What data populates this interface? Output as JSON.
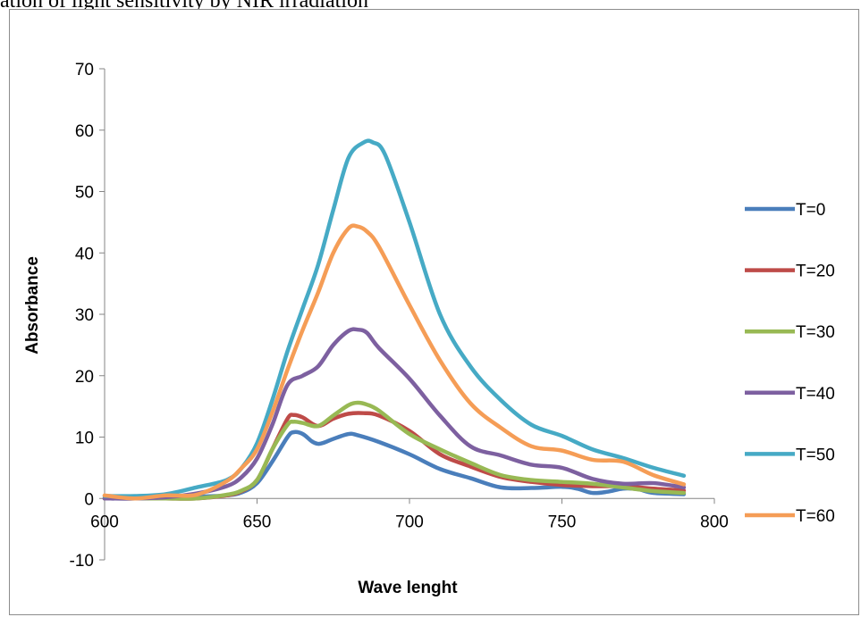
{
  "caption": "ation of light sensitivity by NIR irradiation",
  "chart_data": {
    "type": "line",
    "xlabel": "Wave lenght",
    "ylabel": "Absorbance",
    "xlim": [
      600,
      800
    ],
    "ylim": [
      -10,
      70
    ],
    "x_ticks": [
      600,
      650,
      700,
      750,
      800
    ],
    "y_ticks": [
      -10,
      0,
      10,
      20,
      30,
      40,
      50,
      60,
      70
    ],
    "grid": false,
    "legend_position": "right",
    "series": [
      {
        "name": "T=0",
        "color": "#4a7ebb",
        "points": [
          [
            600,
            0
          ],
          [
            610,
            0
          ],
          [
            620,
            0.2
          ],
          [
            630,
            0.3
          ],
          [
            640,
            0.5
          ],
          [
            645,
            1
          ],
          [
            650,
            2.5
          ],
          [
            655,
            6
          ],
          [
            660,
            10
          ],
          [
            662,
            10.8
          ],
          [
            665,
            10.5
          ],
          [
            668,
            9.3
          ],
          [
            670,
            8.9
          ],
          [
            672,
            9.1
          ],
          [
            675,
            9.7
          ],
          [
            680,
            10.5
          ],
          [
            683,
            10.3
          ],
          [
            690,
            9.2
          ],
          [
            700,
            7.2
          ],
          [
            710,
            4.8
          ],
          [
            720,
            3.3
          ],
          [
            730,
            1.8
          ],
          [
            740,
            1.7
          ],
          [
            750,
            1.9
          ],
          [
            755,
            1.6
          ],
          [
            760,
            0.9
          ],
          [
            765,
            1.1
          ],
          [
            770,
            1.6
          ],
          [
            775,
            1.5
          ],
          [
            780,
            0.9
          ],
          [
            790,
            0.7
          ]
        ]
      },
      {
        "name": "T=20",
        "color": "#be4b48",
        "points": [
          [
            600,
            0
          ],
          [
            610,
            0
          ],
          [
            620,
            0
          ],
          [
            630,
            0
          ],
          [
            640,
            0.5
          ],
          [
            645,
            1.2
          ],
          [
            650,
            3
          ],
          [
            655,
            8
          ],
          [
            660,
            13
          ],
          [
            662,
            13.6
          ],
          [
            665,
            13.2
          ],
          [
            670,
            11.8
          ],
          [
            675,
            13
          ],
          [
            680,
            13.8
          ],
          [
            685,
            13.9
          ],
          [
            690,
            13.5
          ],
          [
            700,
            11
          ],
          [
            710,
            7.2
          ],
          [
            720,
            5.2
          ],
          [
            730,
            3.5
          ],
          [
            740,
            2.7
          ],
          [
            750,
            2.2
          ],
          [
            760,
            2
          ],
          [
            770,
            2
          ],
          [
            780,
            1.6
          ],
          [
            790,
            1.3
          ]
        ]
      },
      {
        "name": "T=30",
        "color": "#98b954",
        "points": [
          [
            600,
            0
          ],
          [
            610,
            0
          ],
          [
            620,
            0
          ],
          [
            630,
            0
          ],
          [
            640,
            0.6
          ],
          [
            645,
            1.3
          ],
          [
            650,
            3
          ],
          [
            655,
            8
          ],
          [
            660,
            12
          ],
          [
            662,
            12.5
          ],
          [
            665,
            12.3
          ],
          [
            670,
            11.8
          ],
          [
            675,
            13.5
          ],
          [
            680,
            15.2
          ],
          [
            683,
            15.6
          ],
          [
            686,
            15.3
          ],
          [
            690,
            14.3
          ],
          [
            700,
            10.5
          ],
          [
            710,
            8
          ],
          [
            720,
            5.8
          ],
          [
            730,
            3.8
          ],
          [
            740,
            3
          ],
          [
            750,
            2.7
          ],
          [
            760,
            2.4
          ],
          [
            770,
            1.8
          ],
          [
            780,
            1.2
          ],
          [
            790,
            0.9
          ]
        ]
      },
      {
        "name": "T=40",
        "color": "#7d60a0",
        "points": [
          [
            600,
            0
          ],
          [
            610,
            0
          ],
          [
            620,
            0.2
          ],
          [
            630,
            0.8
          ],
          [
            640,
            2
          ],
          [
            645,
            3.5
          ],
          [
            650,
            6.5
          ],
          [
            655,
            12
          ],
          [
            660,
            18.5
          ],
          [
            665,
            20
          ],
          [
            670,
            21.5
          ],
          [
            675,
            25
          ],
          [
            680,
            27.3
          ],
          [
            683,
            27.5
          ],
          [
            686,
            27
          ],
          [
            690,
            24.5
          ],
          [
            700,
            19.5
          ],
          [
            710,
            13.5
          ],
          [
            720,
            8.5
          ],
          [
            730,
            7
          ],
          [
            740,
            5.5
          ],
          [
            750,
            5
          ],
          [
            760,
            3.2
          ],
          [
            770,
            2.4
          ],
          [
            780,
            2.5
          ],
          [
            790,
            1.8
          ]
        ]
      },
      {
        "name": "T=50",
        "color": "#46aac5",
        "points": [
          [
            600,
            0.4
          ],
          [
            610,
            0.4
          ],
          [
            620,
            0.7
          ],
          [
            630,
            1.8
          ],
          [
            640,
            3
          ],
          [
            645,
            5
          ],
          [
            650,
            9
          ],
          [
            655,
            16
          ],
          [
            660,
            24
          ],
          [
            665,
            31
          ],
          [
            670,
            38
          ],
          [
            675,
            47
          ],
          [
            680,
            55.5
          ],
          [
            685,
            58
          ],
          [
            688,
            58
          ],
          [
            692,
            56
          ],
          [
            700,
            45
          ],
          [
            710,
            30
          ],
          [
            720,
            21.5
          ],
          [
            730,
            16
          ],
          [
            740,
            12
          ],
          [
            750,
            10.2
          ],
          [
            760,
            8
          ],
          [
            770,
            6.6
          ],
          [
            780,
            5
          ],
          [
            790,
            3.7
          ]
        ]
      },
      {
        "name": "T=60",
        "color": "#f59d56",
        "points": [
          [
            600,
            0.5
          ],
          [
            610,
            0
          ],
          [
            620,
            0.5
          ],
          [
            630,
            0.6
          ],
          [
            640,
            2.8
          ],
          [
            645,
            5
          ],
          [
            650,
            8
          ],
          [
            655,
            14
          ],
          [
            660,
            21
          ],
          [
            665,
            27.5
          ],
          [
            670,
            33.5
          ],
          [
            675,
            40
          ],
          [
            680,
            44
          ],
          [
            683,
            44.3
          ],
          [
            686,
            43.5
          ],
          [
            690,
            41
          ],
          [
            700,
            31.5
          ],
          [
            710,
            22.5
          ],
          [
            720,
            15.5
          ],
          [
            730,
            11.5
          ],
          [
            740,
            8.5
          ],
          [
            750,
            7.8
          ],
          [
            760,
            6.3
          ],
          [
            770,
            6
          ],
          [
            780,
            3.8
          ],
          [
            790,
            2.3
          ]
        ]
      }
    ]
  }
}
